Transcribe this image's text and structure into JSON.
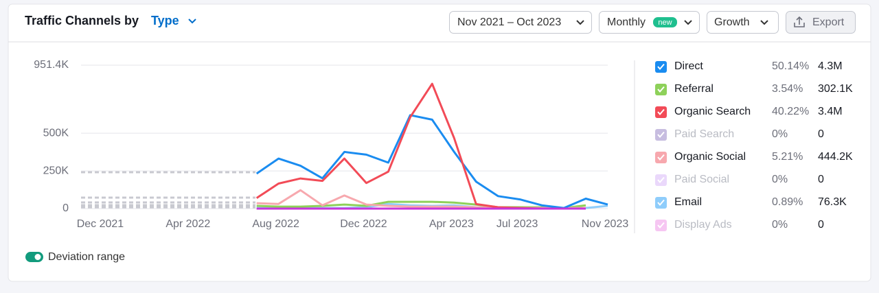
{
  "header": {
    "title": "Traffic Channels by",
    "type": "Type"
  },
  "controls": {
    "date_range": "Nov 2021 – Oct 2023",
    "granularity": "Monthly",
    "badge": "new",
    "metric": "Growth",
    "export": "Export"
  },
  "toggle": {
    "label": "Deviation range",
    "on": true
  },
  "chart_data": {
    "type": "line",
    "categories": [
      null,
      "Dec 2021",
      null,
      null,
      null,
      "Apr 2022",
      null,
      null,
      null,
      "Aug 2022",
      null,
      null,
      null,
      "Dec 2022",
      null,
      null,
      null,
      "Apr 2023",
      null,
      null,
      "Jul 2023",
      null,
      null,
      null,
      "Nov 2023"
    ],
    "ylim": [
      0,
      951400
    ],
    "yticks": [
      0,
      {
        "value": 250000,
        "label": "250K"
      },
      {
        "value": 500000,
        "label": "500K"
      },
      {
        "value": 951400,
        "label": "951.4K"
      }
    ],
    "grid": true,
    "series": [
      {
        "name": "Direct",
        "color": "#1a8cf0",
        "share": {
          "value": 50.14,
          "label": "50.14%"
        },
        "total": {
          "value": 4300000,
          "label": "4.3M"
        },
        "values": [
          null,
          null,
          null,
          null,
          null,
          null,
          null,
          null,
          232000,
          332000,
          284000,
          201000,
          376000,
          358000,
          305000,
          620000,
          590000,
          376000,
          179000,
          83000,
          61000,
          22000,
          4000,
          66000,
          27000
        ]
      },
      {
        "name": "Referral",
        "color": "#8ed15a",
        "share": {
          "value": 3.54,
          "label": "3.54%"
        },
        "total": {
          "value": 302100,
          "label": "302.1K"
        },
        "values": [
          null,
          null,
          null,
          null,
          null,
          null,
          null,
          null,
          18000,
          13000,
          13000,
          18000,
          27000,
          18000,
          45000,
          45000,
          45000,
          40000,
          27000,
          9000,
          9000,
          9000,
          4000,
          22000,
          null
        ]
      },
      {
        "name": "Organic Search",
        "color": "#f24b57",
        "share": {
          "value": 40.22,
          "label": "40.22%"
        },
        "total": {
          "value": 3400000,
          "label": "3.4M"
        },
        "values": [
          null,
          null,
          null,
          null,
          null,
          null,
          null,
          null,
          70000,
          166000,
          200000,
          184000,
          332000,
          170000,
          245000,
          607000,
          828000,
          468000,
          30000,
          9000,
          4000,
          0,
          0,
          0,
          null
        ]
      },
      {
        "name": "Paid Search",
        "color": "#c7bde0",
        "dimmed": true,
        "share": {
          "value": 0,
          "label": "0%"
        },
        "total": 0,
        "values": [
          null,
          null,
          null,
          null,
          null,
          null,
          null,
          null,
          0,
          0,
          0,
          0,
          0,
          0,
          0,
          0,
          0,
          0,
          0,
          0,
          0,
          0,
          0,
          0,
          null
        ]
      },
      {
        "name": "Organic Social",
        "color": "#f7a8ae",
        "share": {
          "value": 5.21,
          "label": "5.21%"
        },
        "total": {
          "value": 444200,
          "label": "444.2K"
        },
        "values": [
          null,
          null,
          null,
          null,
          null,
          null,
          null,
          null,
          36000,
          31000,
          122000,
          22000,
          87000,
          27000,
          18000,
          13000,
          13000,
          13000,
          9000,
          4000,
          4000,
          4000,
          4000,
          4000,
          null
        ]
      },
      {
        "name": "Paid Social",
        "color": "#ead8fb",
        "dimmed": true,
        "share": {
          "value": 0,
          "label": "0%"
        },
        "total": 0,
        "values": [
          null,
          null,
          null,
          null,
          null,
          null,
          null,
          null,
          0,
          0,
          0,
          0,
          0,
          0,
          0,
          0,
          0,
          0,
          0,
          0,
          0,
          0,
          0,
          0,
          null
        ]
      },
      {
        "name": "Email",
        "color": "#8fcdfb",
        "share": {
          "value": 0.89,
          "label": "0.89%"
        },
        "total": {
          "value": 76300,
          "label": "76.3K"
        },
        "values": [
          null,
          null,
          null,
          null,
          null,
          null,
          null,
          null,
          4000,
          4000,
          4000,
          4000,
          4000,
          9000,
          31000,
          22000,
          18000,
          22000,
          9000,
          4000,
          4000,
          4000,
          4000,
          4000,
          18000
        ]
      },
      {
        "name": "Display Ads",
        "color": "#c736d9",
        "legend_color": "#f6c6f2",
        "dimmed": true,
        "share": {
          "value": 0,
          "label": "0%"
        },
        "total": 0,
        "values": [
          null,
          null,
          null,
          null,
          null,
          null,
          null,
          null,
          0,
          0,
          0,
          0,
          0,
          0,
          0,
          0,
          0,
          0,
          0,
          0,
          0,
          0,
          0,
          0,
          null
        ]
      }
    ]
  }
}
